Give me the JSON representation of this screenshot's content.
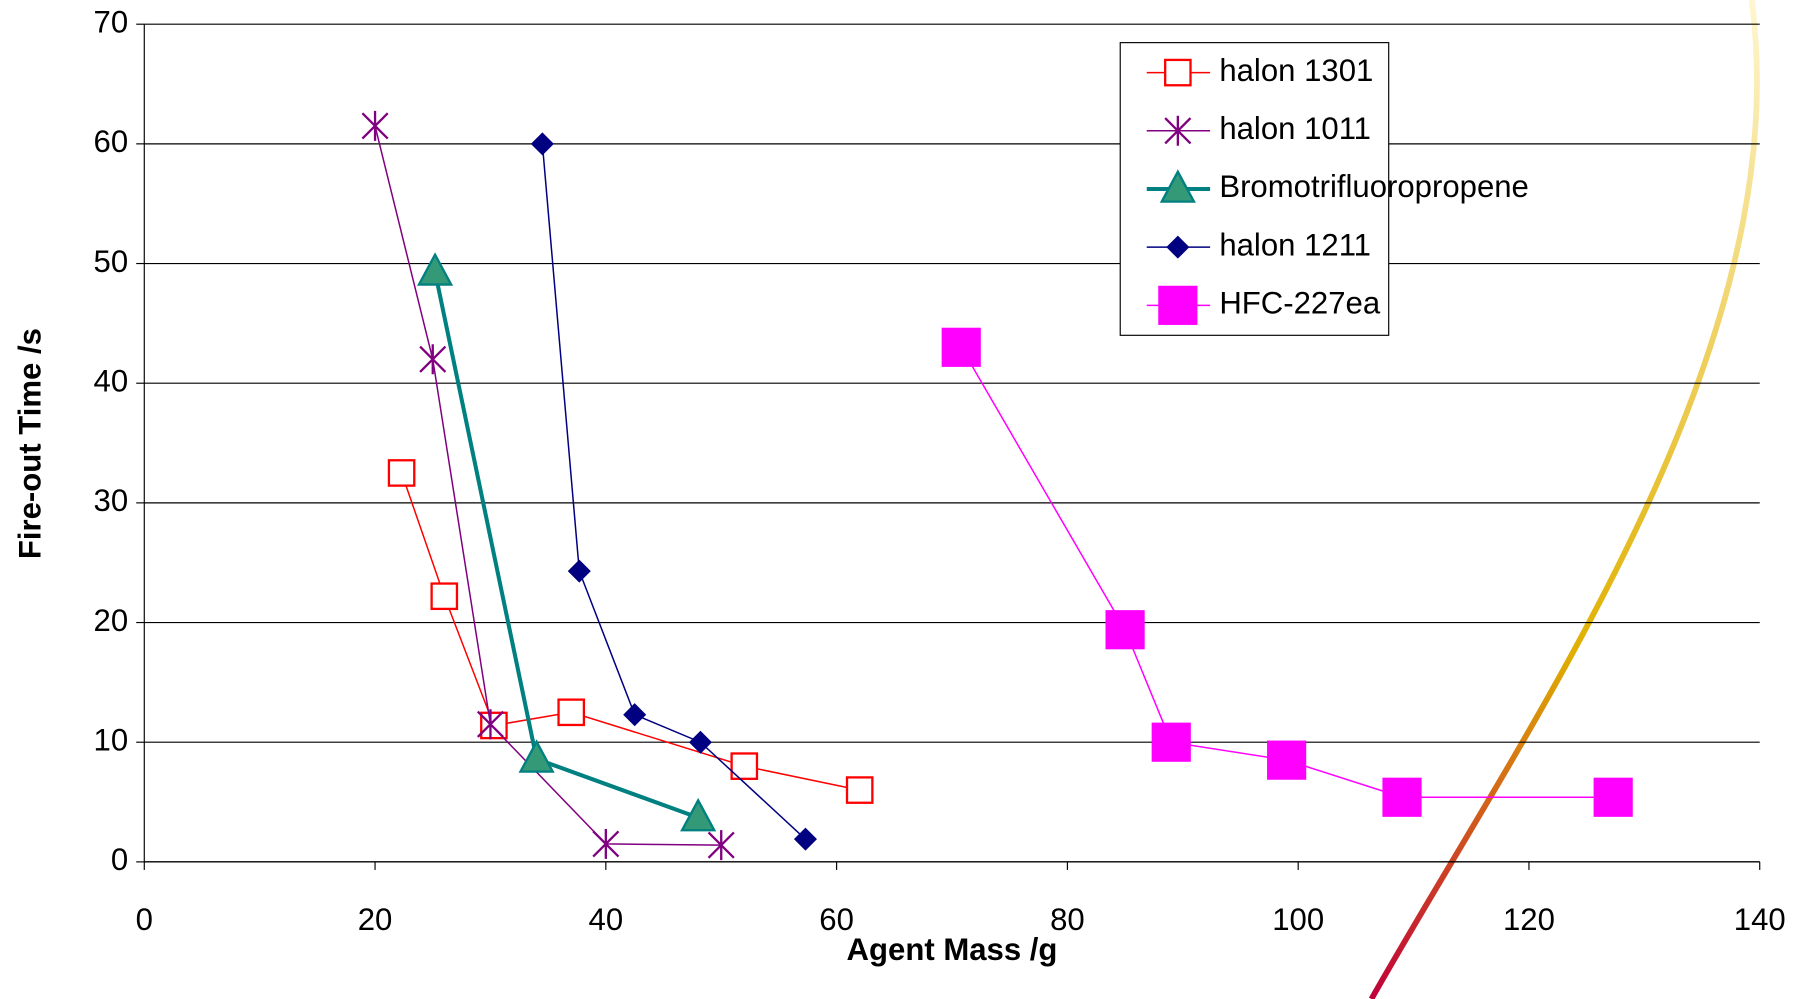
{
  "chart_data": {
    "type": "line",
    "x_label": "Agent Mass /g",
    "y_label": "Fire-out Time /s",
    "xlim": [
      0,
      140
    ],
    "xticks": [
      0,
      20,
      40,
      60,
      80,
      100,
      120,
      140
    ],
    "ylim": [
      0,
      70
    ],
    "yticks": [
      0,
      10,
      20,
      30,
      40,
      50,
      60,
      70
    ],
    "grid": true,
    "legend": "top-right",
    "series": [
      {
        "name": "halon 1301",
        "color": "#ff0000",
        "marker": "open-square",
        "x": [
          22.3,
          26,
          30.3,
          37,
          52,
          62
        ],
        "values": [
          32.5,
          22.2,
          11.4,
          12.5,
          8,
          6
        ]
      },
      {
        "name": "halon 1011",
        "color": "#800080",
        "marker": "asterisk",
        "x": [
          20,
          25,
          30,
          40,
          50
        ],
        "values": [
          61.5,
          42,
          11.5,
          1.5,
          1.4
        ]
      },
      {
        "name": "Bromotrifluoropropene",
        "color": "#008080",
        "marker": "triangle",
        "x": [
          25.2,
          34,
          48
        ],
        "values": [
          49.3,
          8.6,
          3.7
        ]
      },
      {
        "name": "halon 1211",
        "color": "#000080",
        "marker": "diamond",
        "x": [
          34.5,
          37.7,
          42.5,
          48.2,
          57.3
        ],
        "values": [
          60,
          24.3,
          12.3,
          10,
          1.9
        ]
      },
      {
        "name": "HFC-227ea",
        "color": "#ff00ff",
        "marker": "square",
        "x": [
          70.8,
          85,
          89,
          99,
          109,
          127.3
        ],
        "values": [
          43,
          19.4,
          10,
          8.5,
          5.4,
          5.4
        ]
      }
    ]
  }
}
